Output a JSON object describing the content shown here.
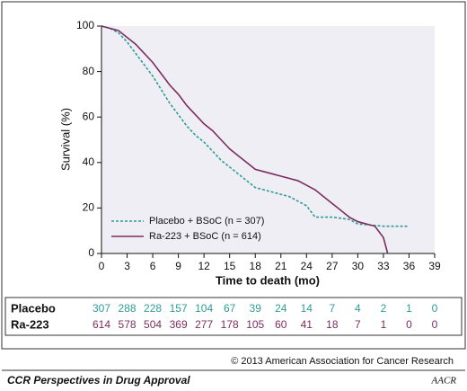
{
  "chart_data": {
    "type": "line",
    "y_label": "Survival (%)",
    "x_label": "Time to death (mo)",
    "xlim": [
      0,
      39
    ],
    "xticks": [
      0,
      3,
      6,
      9,
      12,
      15,
      18,
      21,
      24,
      27,
      30,
      33,
      36,
      39
    ],
    "ylim": [
      0,
      100
    ],
    "yticks": [
      0,
      20,
      40,
      60,
      80,
      100
    ],
    "legend": "lower left",
    "series": [
      {
        "name": "Placebo + BSoC (n = 307)",
        "color": "#2e9c98",
        "dashed": true,
        "x": [
          0,
          1,
          2,
          3,
          4,
          5,
          6,
          7,
          8,
          9,
          10,
          11,
          12,
          13,
          14,
          15,
          16,
          17,
          18,
          19,
          20,
          21,
          22,
          23,
          24,
          25,
          27,
          29,
          30,
          33,
          36
        ],
        "values": [
          100,
          99,
          97,
          93,
          88,
          83,
          78,
          72,
          66,
          61,
          56,
          52,
          49,
          45,
          41,
          38,
          35,
          32,
          29,
          28,
          27,
          26,
          25,
          23,
          21,
          16,
          16,
          15,
          13,
          12,
          12
        ]
      },
      {
        "name": "Ra-223 + BSoC (n = 614)",
        "color": "#7b2d5f",
        "dashed": false,
        "x": [
          0,
          1,
          2,
          3,
          4,
          5,
          6,
          7,
          8,
          9,
          10,
          11,
          12,
          13,
          14,
          15,
          16,
          17,
          18,
          19,
          20,
          21,
          22,
          23,
          24,
          25,
          26,
          27,
          28,
          29,
          30,
          31,
          32,
          33,
          33.5
        ],
        "values": [
          100,
          99,
          98,
          95,
          92,
          88,
          84,
          79,
          74,
          70,
          65,
          61,
          57,
          54,
          50,
          46,
          43,
          40,
          37,
          36,
          35,
          34,
          33,
          32,
          30,
          28,
          25,
          22,
          19,
          16,
          14,
          13,
          12,
          7,
          0
        ]
      }
    ],
    "risk_table": {
      "rows": [
        {
          "label": "Placebo",
          "color": "#2e9c98",
          "values": [
            307,
            288,
            228,
            157,
            104,
            67,
            39,
            24,
            14,
            7,
            4,
            2,
            1,
            0
          ]
        },
        {
          "label": "Ra-223",
          "color": "#7b2d5f",
          "values": [
            614,
            578,
            504,
            369,
            277,
            178,
            105,
            60,
            41,
            18,
            7,
            1,
            0,
            0
          ]
        }
      ]
    },
    "copyright": "© 2013 American Association for Cancer Research",
    "footer_title": "CCR Perspectives in Drug Approval",
    "logo": "AACR"
  }
}
